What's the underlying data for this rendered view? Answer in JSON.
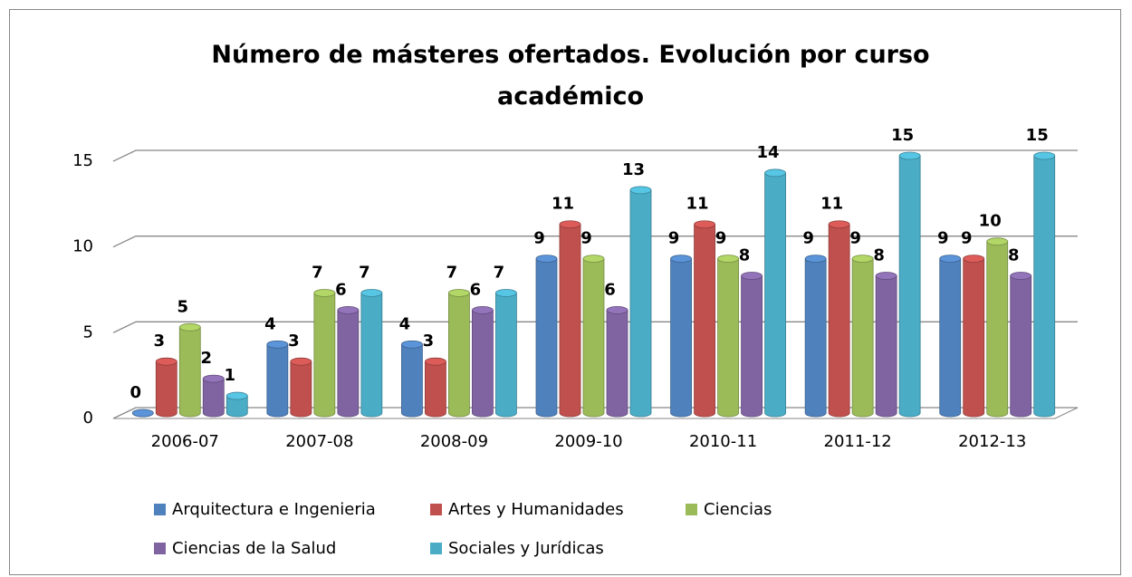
{
  "chart_data": {
    "type": "bar",
    "title": "Número de másteres ofertados. Evolución por curso académico",
    "categories": [
      "2006-07",
      "2007-08",
      "2008-09",
      "2009-10",
      "2010-11",
      "2011-12",
      "2012-13"
    ],
    "series": [
      {
        "name": "Arquitectura e Ingenieria",
        "color": "#4f81bd",
        "values": [
          0,
          4,
          4,
          9,
          9,
          9,
          9
        ]
      },
      {
        "name": "Artes y Humanidades",
        "color": "#c0504d",
        "values": [
          3,
          3,
          3,
          11,
          11,
          11,
          9
        ]
      },
      {
        "name": "Ciencias",
        "color": "#9bbb59",
        "values": [
          5,
          7,
          7,
          9,
          9,
          9,
          10
        ]
      },
      {
        "name": "Ciencias de la Salud",
        "color": "#8064a2",
        "values": [
          2,
          6,
          6,
          6,
          8,
          8,
          8
        ]
      },
      {
        "name": "Sociales y Jurídicas",
        "color": "#4bacc6",
        "values": [
          1,
          7,
          7,
          13,
          14,
          15,
          15
        ]
      }
    ],
    "ylim": [
      0,
      15
    ],
    "yticks": [
      0,
      5,
      10,
      15
    ],
    "grid": true
  }
}
